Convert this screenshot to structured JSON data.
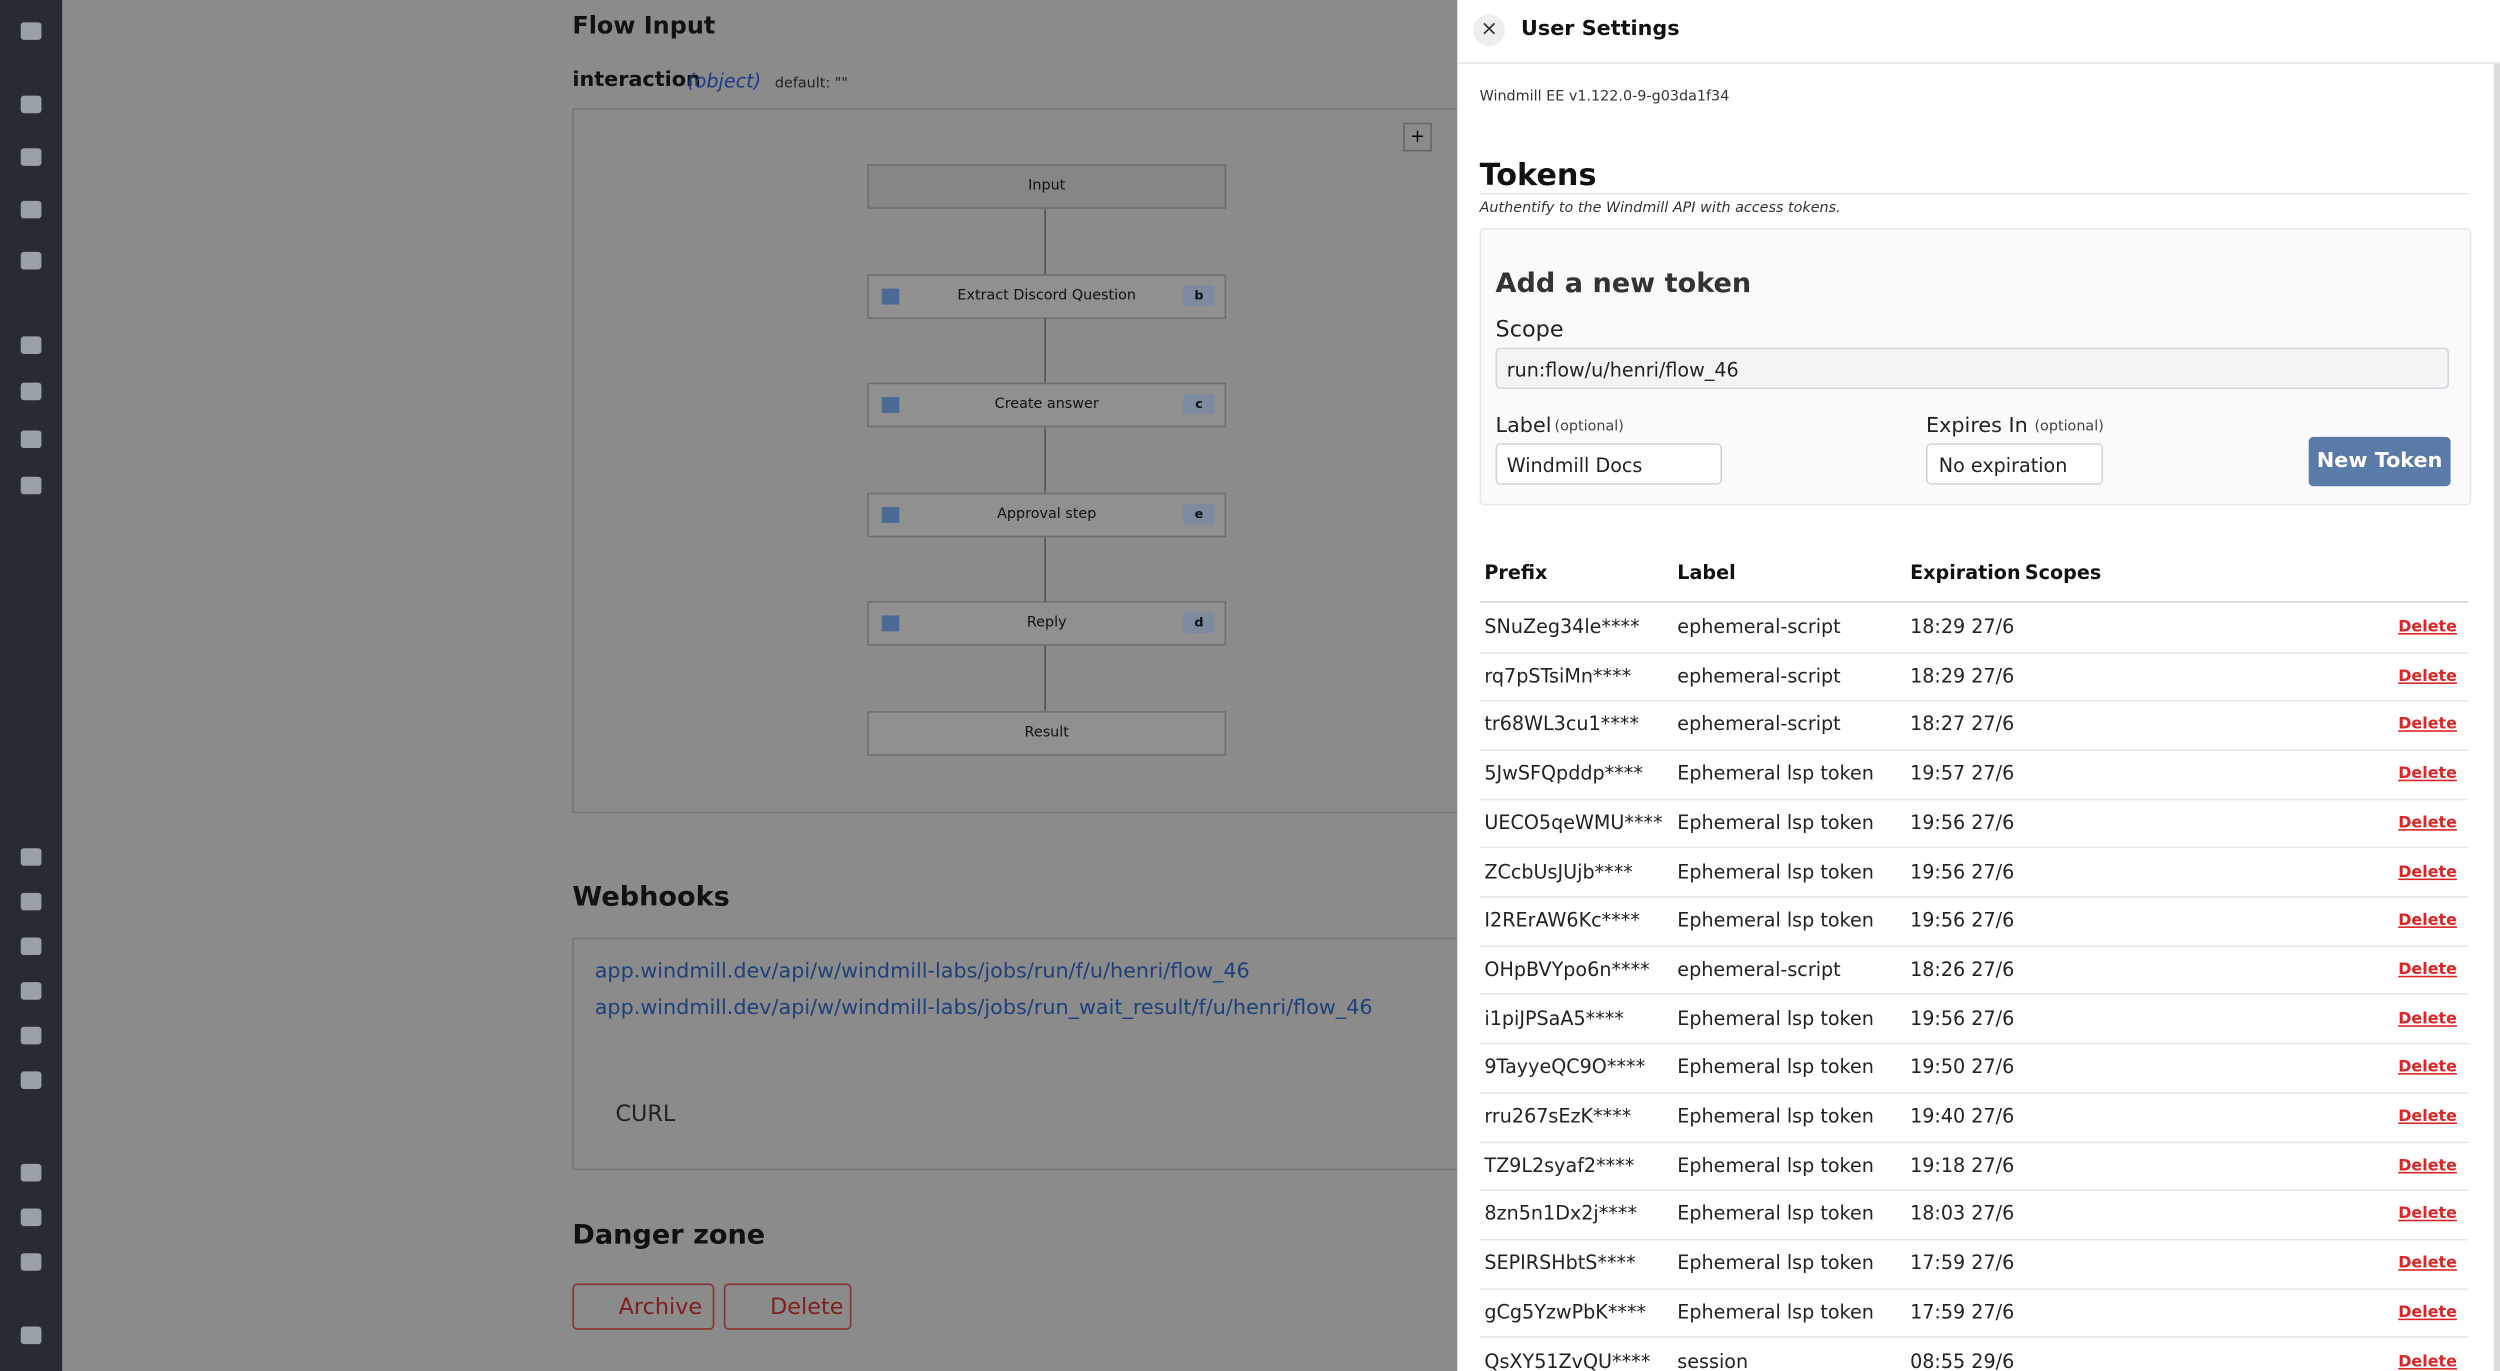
{
  "main": {
    "flow_input_title": "Flow Input",
    "field_name": "interaction",
    "field_type": "(object)",
    "field_default": "default: \"\"",
    "graph_nodes": [
      {
        "label": "Input"
      },
      {
        "label": "Extract Discord Question",
        "badge": "b"
      },
      {
        "label": "Create answer",
        "badge": "c"
      },
      {
        "label": "Approval step",
        "badge": "e"
      },
      {
        "label": "Reply",
        "badge": "d"
      },
      {
        "label": "Result"
      }
    ],
    "webhooks_title": "Webhooks",
    "webhook_urls": [
      "app.windmill.dev/api/w/windmill-labs/jobs/run/f/u/henri/flow_46",
      "app.windmill.dev/api/w/windmill-labs/jobs/run_wait_result/f/u/henri/flow_46"
    ],
    "curl": "CURL",
    "danger_title": "Danger zone",
    "archive": "Archive",
    "delete": "Delete"
  },
  "drawer": {
    "title": "User Settings",
    "version": "Windmill EE v1.122.0-9-g03da1f34",
    "tokens_title": "Tokens",
    "tokens_subtitle": "Authentify to the Windmill API with access tokens.",
    "add_title": "Add a new token",
    "scope_label": "Scope",
    "scope_value": "run:flow/u/henri/flow_46",
    "label_label": "Label",
    "label_optional": "(optional)",
    "label_value": "Windmill Docs",
    "expires_label": "Expires In",
    "expires_optional": "(optional)",
    "expires_value": "No expiration",
    "new_token": "New Token",
    "table": {
      "headers": [
        "Prefix",
        "Label",
        "Expiration",
        "Scopes"
      ],
      "rows": [
        [
          "SNuZeg34le****",
          "ephemeral-script",
          "18:29 27/6",
          "Delete"
        ],
        [
          "rq7pSTsiMn****",
          "ephemeral-script",
          "18:29 27/6",
          "Delete"
        ],
        [
          "tr68WL3cu1****",
          "ephemeral-script",
          "18:27 27/6",
          "Delete"
        ],
        [
          "5JwSFQpddp****",
          "Ephemeral lsp token",
          "19:57 27/6",
          "Delete"
        ],
        [
          "UECO5qeWMU****",
          "Ephemeral lsp token",
          "19:56 27/6",
          "Delete"
        ],
        [
          "ZCcbUsJUjb****",
          "Ephemeral lsp token",
          "19:56 27/6",
          "Delete"
        ],
        [
          "I2RErAW6Kc****",
          "Ephemeral lsp token",
          "19:56 27/6",
          "Delete"
        ],
        [
          "OHpBVYpo6n****",
          "ephemeral-script",
          "18:26 27/6",
          "Delete"
        ],
        [
          "i1piJPSaA5****",
          "Ephemeral lsp token",
          "19:56 27/6",
          "Delete"
        ],
        [
          "9TayyeQC9O****",
          "Ephemeral lsp token",
          "19:50 27/6",
          "Delete"
        ],
        [
          "rru267sEzK****",
          "Ephemeral lsp token",
          "19:40 27/6",
          "Delete"
        ],
        [
          "TZ9L2syaf2****",
          "Ephemeral lsp token",
          "19:18 27/6",
          "Delete"
        ],
        [
          "8zn5n1Dx2j****",
          "Ephemeral lsp token",
          "18:03 27/6",
          "Delete"
        ],
        [
          "SEPIRSHbtS****",
          "Ephemeral lsp token",
          "17:59 27/6",
          "Delete"
        ],
        [
          "gCg5YzwPbK****",
          "Ephemeral lsp token",
          "17:59 27/6",
          "Delete"
        ],
        [
          "QsXY51ZvQU****",
          "session",
          "08:55 29/6",
          "Delete"
        ]
      ]
    }
  }
}
